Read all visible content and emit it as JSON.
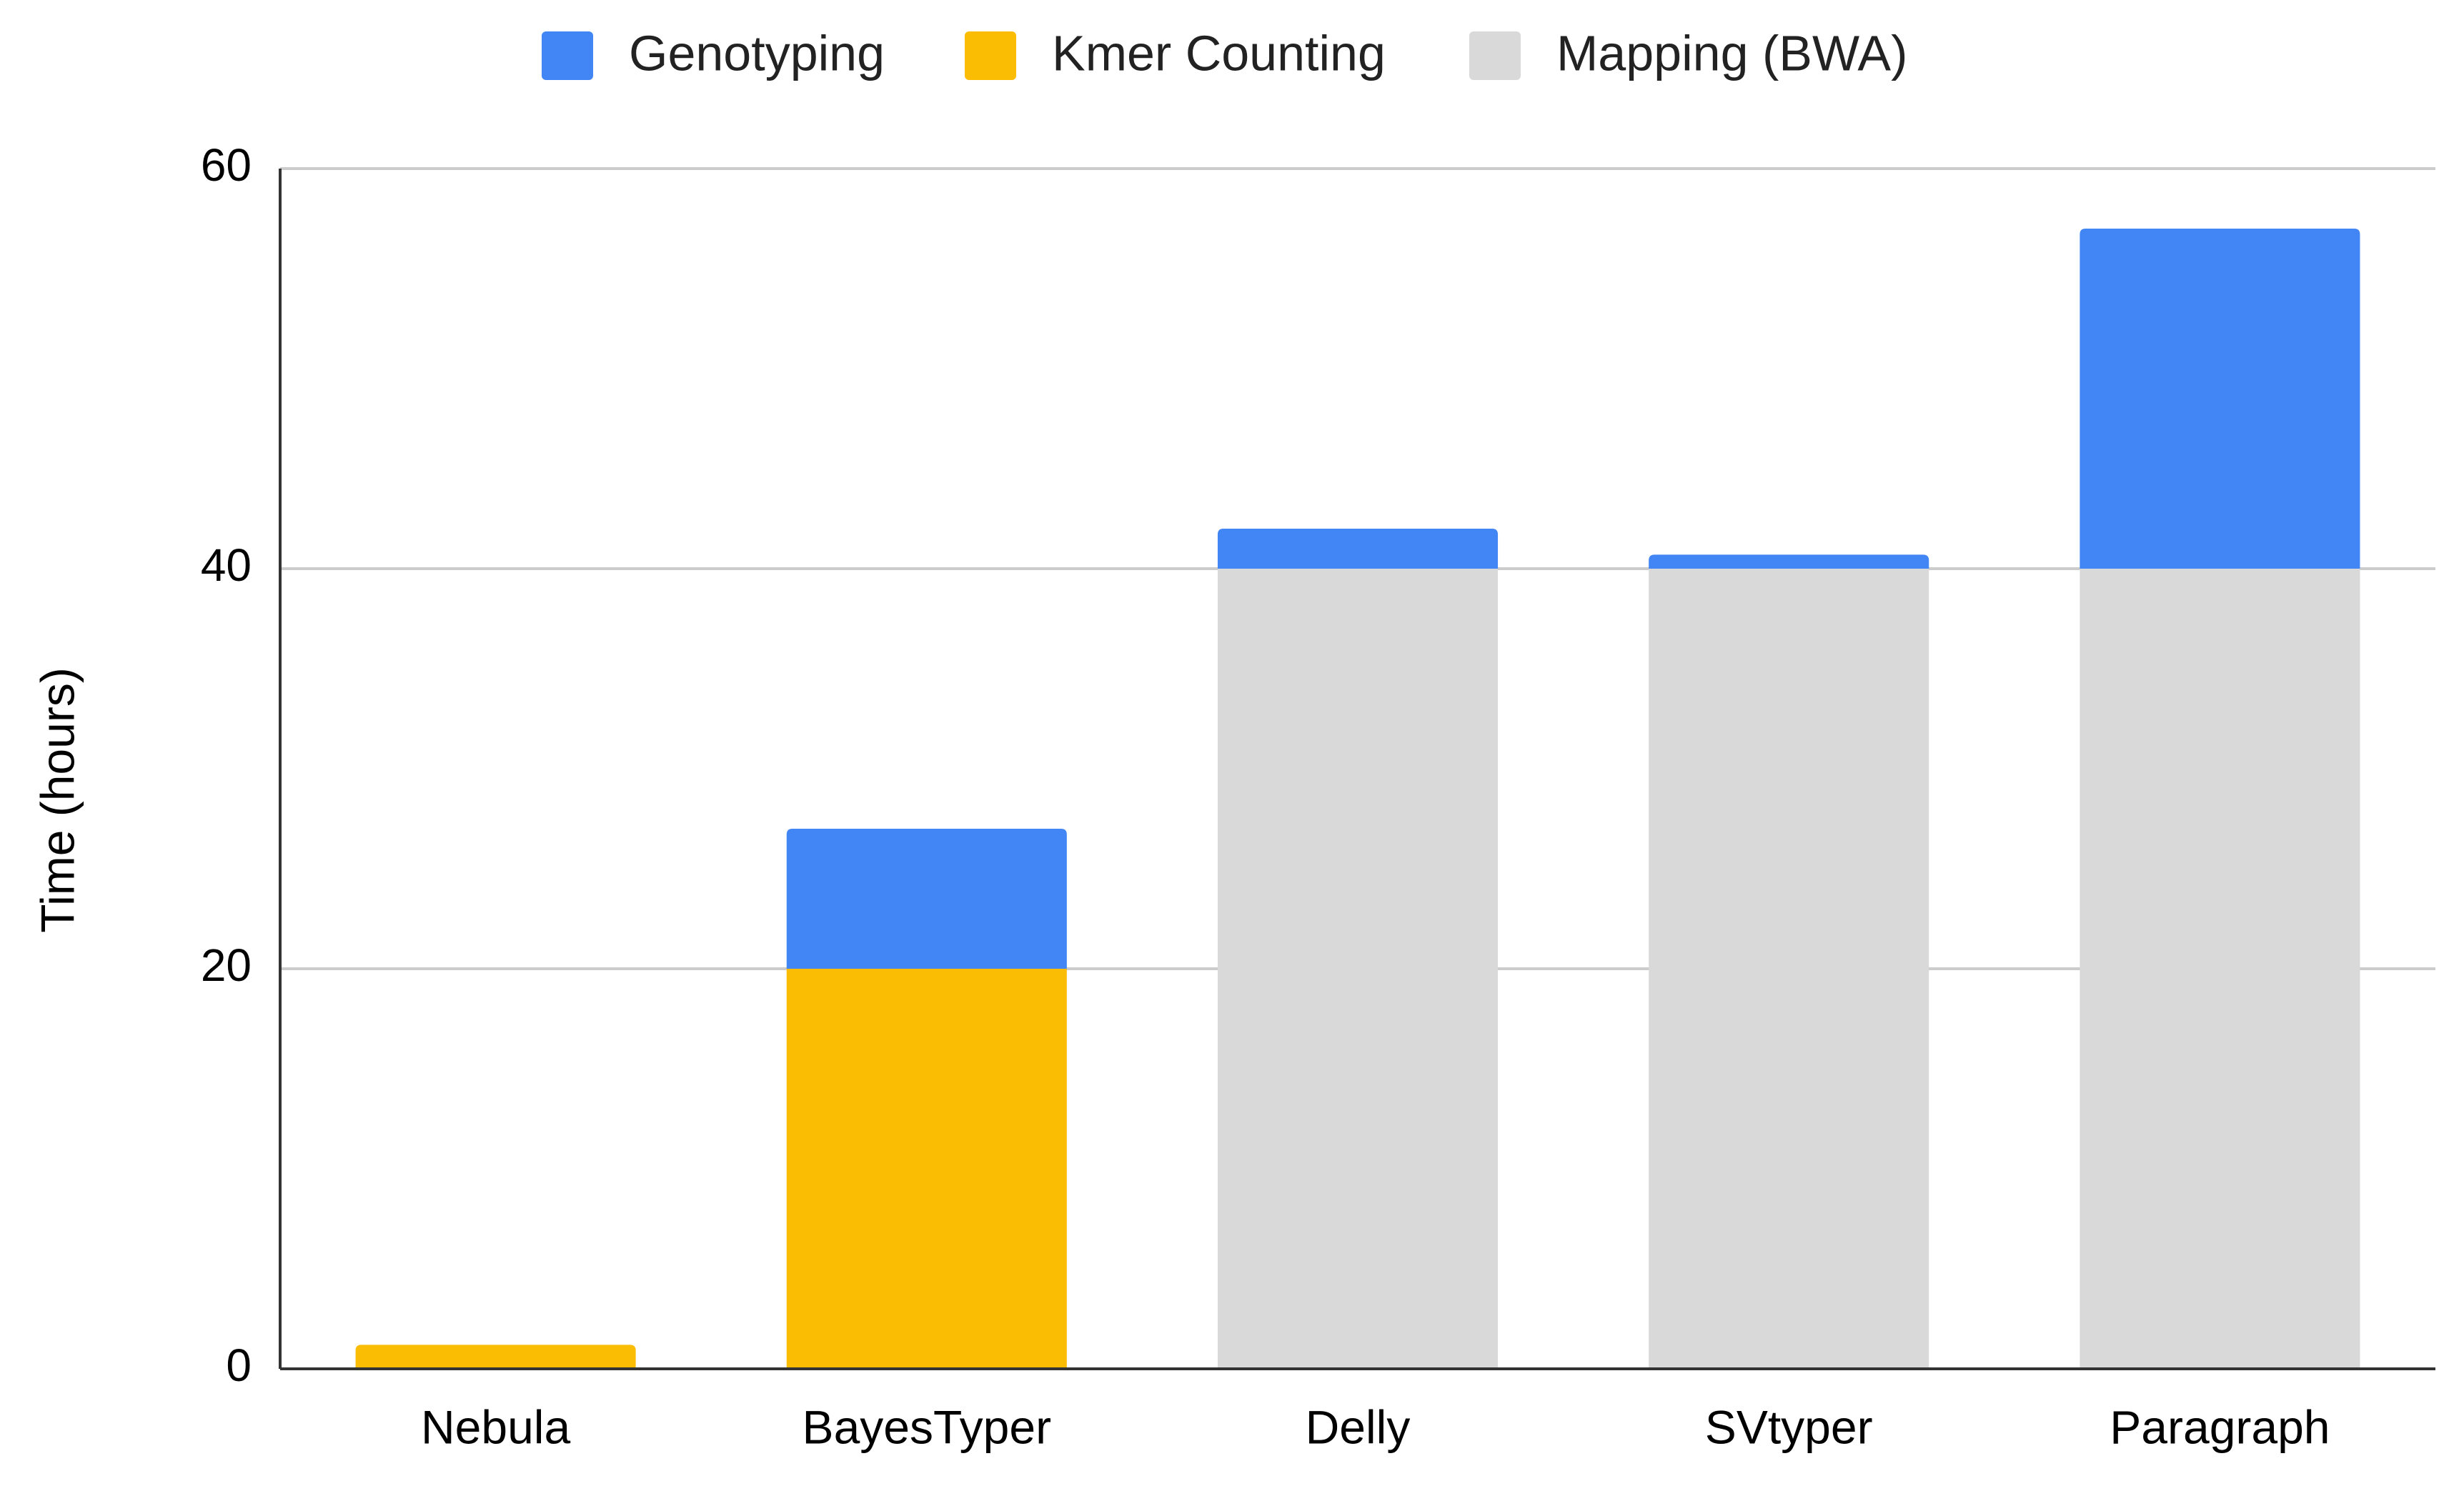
{
  "chart_data": {
    "type": "bar",
    "stacked": true,
    "categories": [
      "Nebula",
      "BayesTyper",
      "Delly",
      "SVtyper",
      "Paragraph"
    ],
    "series": [
      {
        "name": "Mapping (BWA)",
        "color": "#d9d9d9",
        "values": [
          0,
          0,
          40,
          40,
          40
        ]
      },
      {
        "name": "Kmer Counting",
        "color": "#fbbc04",
        "values": [
          1.2,
          20,
          0,
          0,
          0
        ]
      },
      {
        "name": "Genotyping",
        "color": "#4285f4",
        "values": [
          0,
          7,
          2,
          0.7,
          17
        ]
      }
    ],
    "legend_order": [
      "Genotyping",
      "Kmer Counting",
      "Mapping (BWA)"
    ],
    "legend_position": "top",
    "ylabel": "Time (hours)",
    "xlabel": "",
    "ylim": [
      0,
      60
    ],
    "yticks": [
      0,
      20,
      40,
      60
    ],
    "grid": true
  }
}
